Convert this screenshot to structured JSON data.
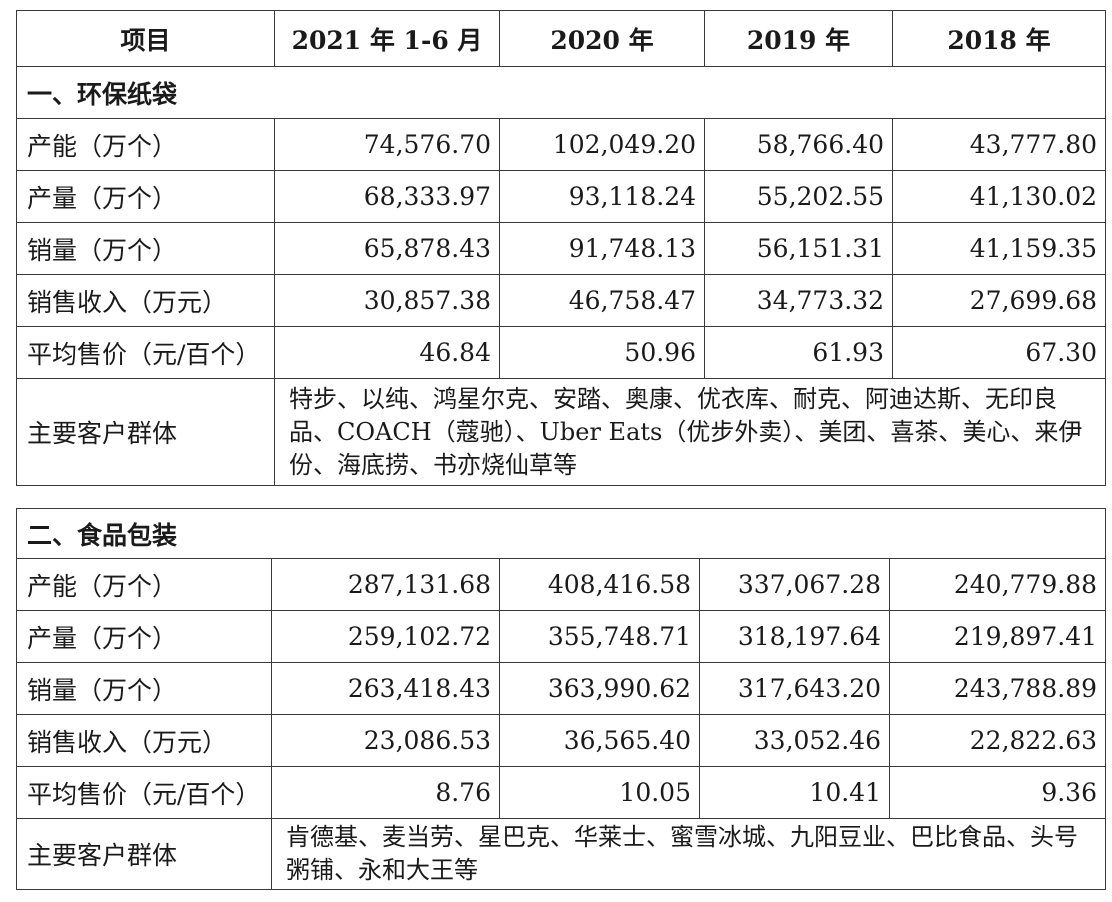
{
  "header": {
    "item": "项目",
    "periods": [
      "2021 年 1-6 月",
      "2020 年",
      "2019 年",
      "2018 年"
    ]
  },
  "sections": [
    {
      "title": "一、环保纸袋",
      "rows": [
        {
          "label": "产能（万个）",
          "values": [
            "74,576.70",
            "102,049.20",
            "58,766.40",
            "43,777.80"
          ]
        },
        {
          "label": "产量（万个）",
          "values": [
            "68,333.97",
            "93,118.24",
            "55,202.55",
            "41,130.02"
          ]
        },
        {
          "label": "销量（万个）",
          "values": [
            "65,878.43",
            "91,748.13",
            "56,151.31",
            "41,159.35"
          ]
        },
        {
          "label": "销售收入（万元）",
          "values": [
            "30,857.38",
            "46,758.47",
            "34,773.32",
            "27,699.68"
          ]
        },
        {
          "label": "平均售价（元/百个）",
          "values": [
            "46.84",
            "50.96",
            "61.93",
            "67.30"
          ]
        }
      ],
      "clients_label": "主要客户群体",
      "clients": "特步、以纯、鸿星尔克、安踏、奥康、优衣库、耐克、阿迪达斯、无印良品、COACH（蔻驰）、Uber Eats（优步外卖）、美团、喜茶、美心、来伊份、海底捞、书亦烧仙草等"
    },
    {
      "title": "二、食品包装",
      "rows": [
        {
          "label": "产能（万个）",
          "values": [
            "287,131.68",
            "408,416.58",
            "337,067.28",
            "240,779.88"
          ]
        },
        {
          "label": "产量（万个）",
          "values": [
            "259,102.72",
            "355,748.71",
            "318,197.64",
            "219,897.41"
          ]
        },
        {
          "label": "销量（万个）",
          "values": [
            "263,418.43",
            "363,990.62",
            "317,643.20",
            "243,788.89"
          ]
        },
        {
          "label": "销售收入（万元）",
          "values": [
            "23,086.53",
            "36,565.40",
            "33,052.46",
            "22,822.63"
          ]
        },
        {
          "label": "平均售价（元/百个）",
          "values": [
            "8.76",
            "10.05",
            "10.41",
            "9.36"
          ]
        }
      ],
      "clients_label": "主要客户群体",
      "clients": "肯德基、麦当劳、星巴克、华莱士、蜜雪冰城、九阳豆业、巴比食品、头号粥铺、永和大王等"
    }
  ]
}
